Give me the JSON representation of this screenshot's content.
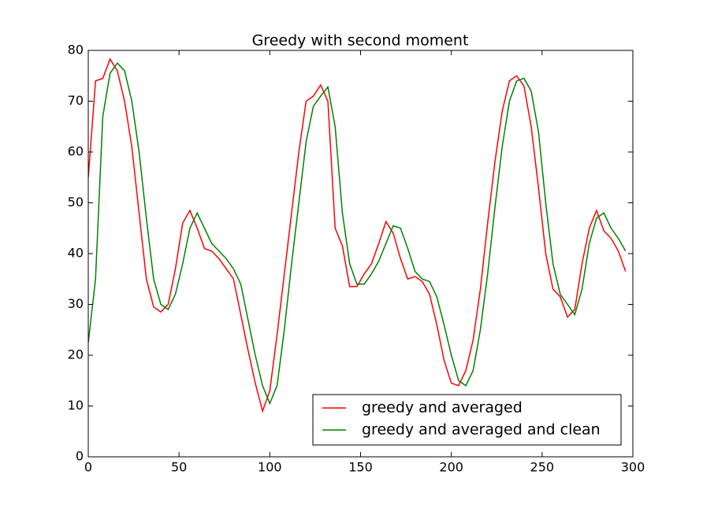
{
  "chart_data": {
    "type": "line",
    "title": "Greedy with second moment",
    "x": [
      0,
      4,
      8,
      12,
      16,
      20,
      24,
      28,
      32,
      36,
      40,
      44,
      48,
      52,
      56,
      60,
      64,
      68,
      72,
      76,
      80,
      84,
      88,
      92,
      96,
      100,
      104,
      108,
      112,
      116,
      120,
      124,
      128,
      132,
      136,
      140,
      144,
      148,
      152,
      156,
      160,
      164,
      168,
      172,
      176,
      180,
      184,
      188,
      192,
      196,
      200,
      204,
      208,
      212,
      216,
      220,
      224,
      228,
      232,
      236,
      240,
      244,
      248,
      252,
      256,
      260,
      264,
      268,
      272,
      276,
      280,
      284,
      288,
      292,
      296
    ],
    "series": [
      {
        "name": "greedy and averaged",
        "color": "#ff0000",
        "values": [
          55,
          74,
          74.5,
          78.3,
          76,
          70,
          61,
          48,
          35,
          29.5,
          28.5,
          30,
          37,
          46,
          48.5,
          45,
          41,
          40.5,
          39,
          37,
          35,
          28,
          21,
          14.5,
          9,
          13,
          24,
          36,
          48,
          60,
          70,
          71,
          73.2,
          70,
          45,
          41.5,
          33.5,
          33.5,
          36,
          38,
          42,
          46.3,
          44,
          39,
          35,
          35.5,
          34.5,
          32,
          26,
          19,
          14.5,
          14,
          17,
          23,
          33,
          46,
          58,
          68,
          74,
          75,
          73,
          65,
          53,
          40,
          33,
          31.5,
          27.5,
          29,
          38,
          45,
          48.5,
          44.5,
          43,
          40.5,
          36.5
        ]
      },
      {
        "name": "greedy and averaged and clean",
        "color": "#008000",
        "values": [
          22.5,
          35,
          67,
          75.5,
          77.5,
          76,
          70,
          60,
          47,
          35,
          30,
          29,
          32,
          38,
          45,
          48,
          45,
          42,
          40.5,
          39,
          37,
          34,
          27,
          20,
          14,
          10.5,
          14,
          25,
          38,
          50,
          62,
          69,
          71,
          72.8,
          65,
          48,
          38,
          34,
          34,
          36,
          38.5,
          42,
          45.5,
          45,
          41,
          36.5,
          35,
          34.5,
          31.5,
          26,
          20,
          15,
          14,
          17,
          25,
          36,
          49,
          61,
          70,
          74,
          74.5,
          72,
          64,
          50,
          38,
          32,
          30,
          28,
          33,
          42,
          47,
          48,
          45,
          43,
          40.5
        ]
      }
    ],
    "xlim": [
      0,
      300
    ],
    "xticks": [
      0,
      50,
      100,
      150,
      200,
      250,
      300
    ],
    "ylim": [
      0,
      80
    ],
    "yticks": [
      0,
      10,
      20,
      30,
      40,
      50,
      60,
      70,
      80
    ],
    "grid": false,
    "legend": "lower right"
  }
}
